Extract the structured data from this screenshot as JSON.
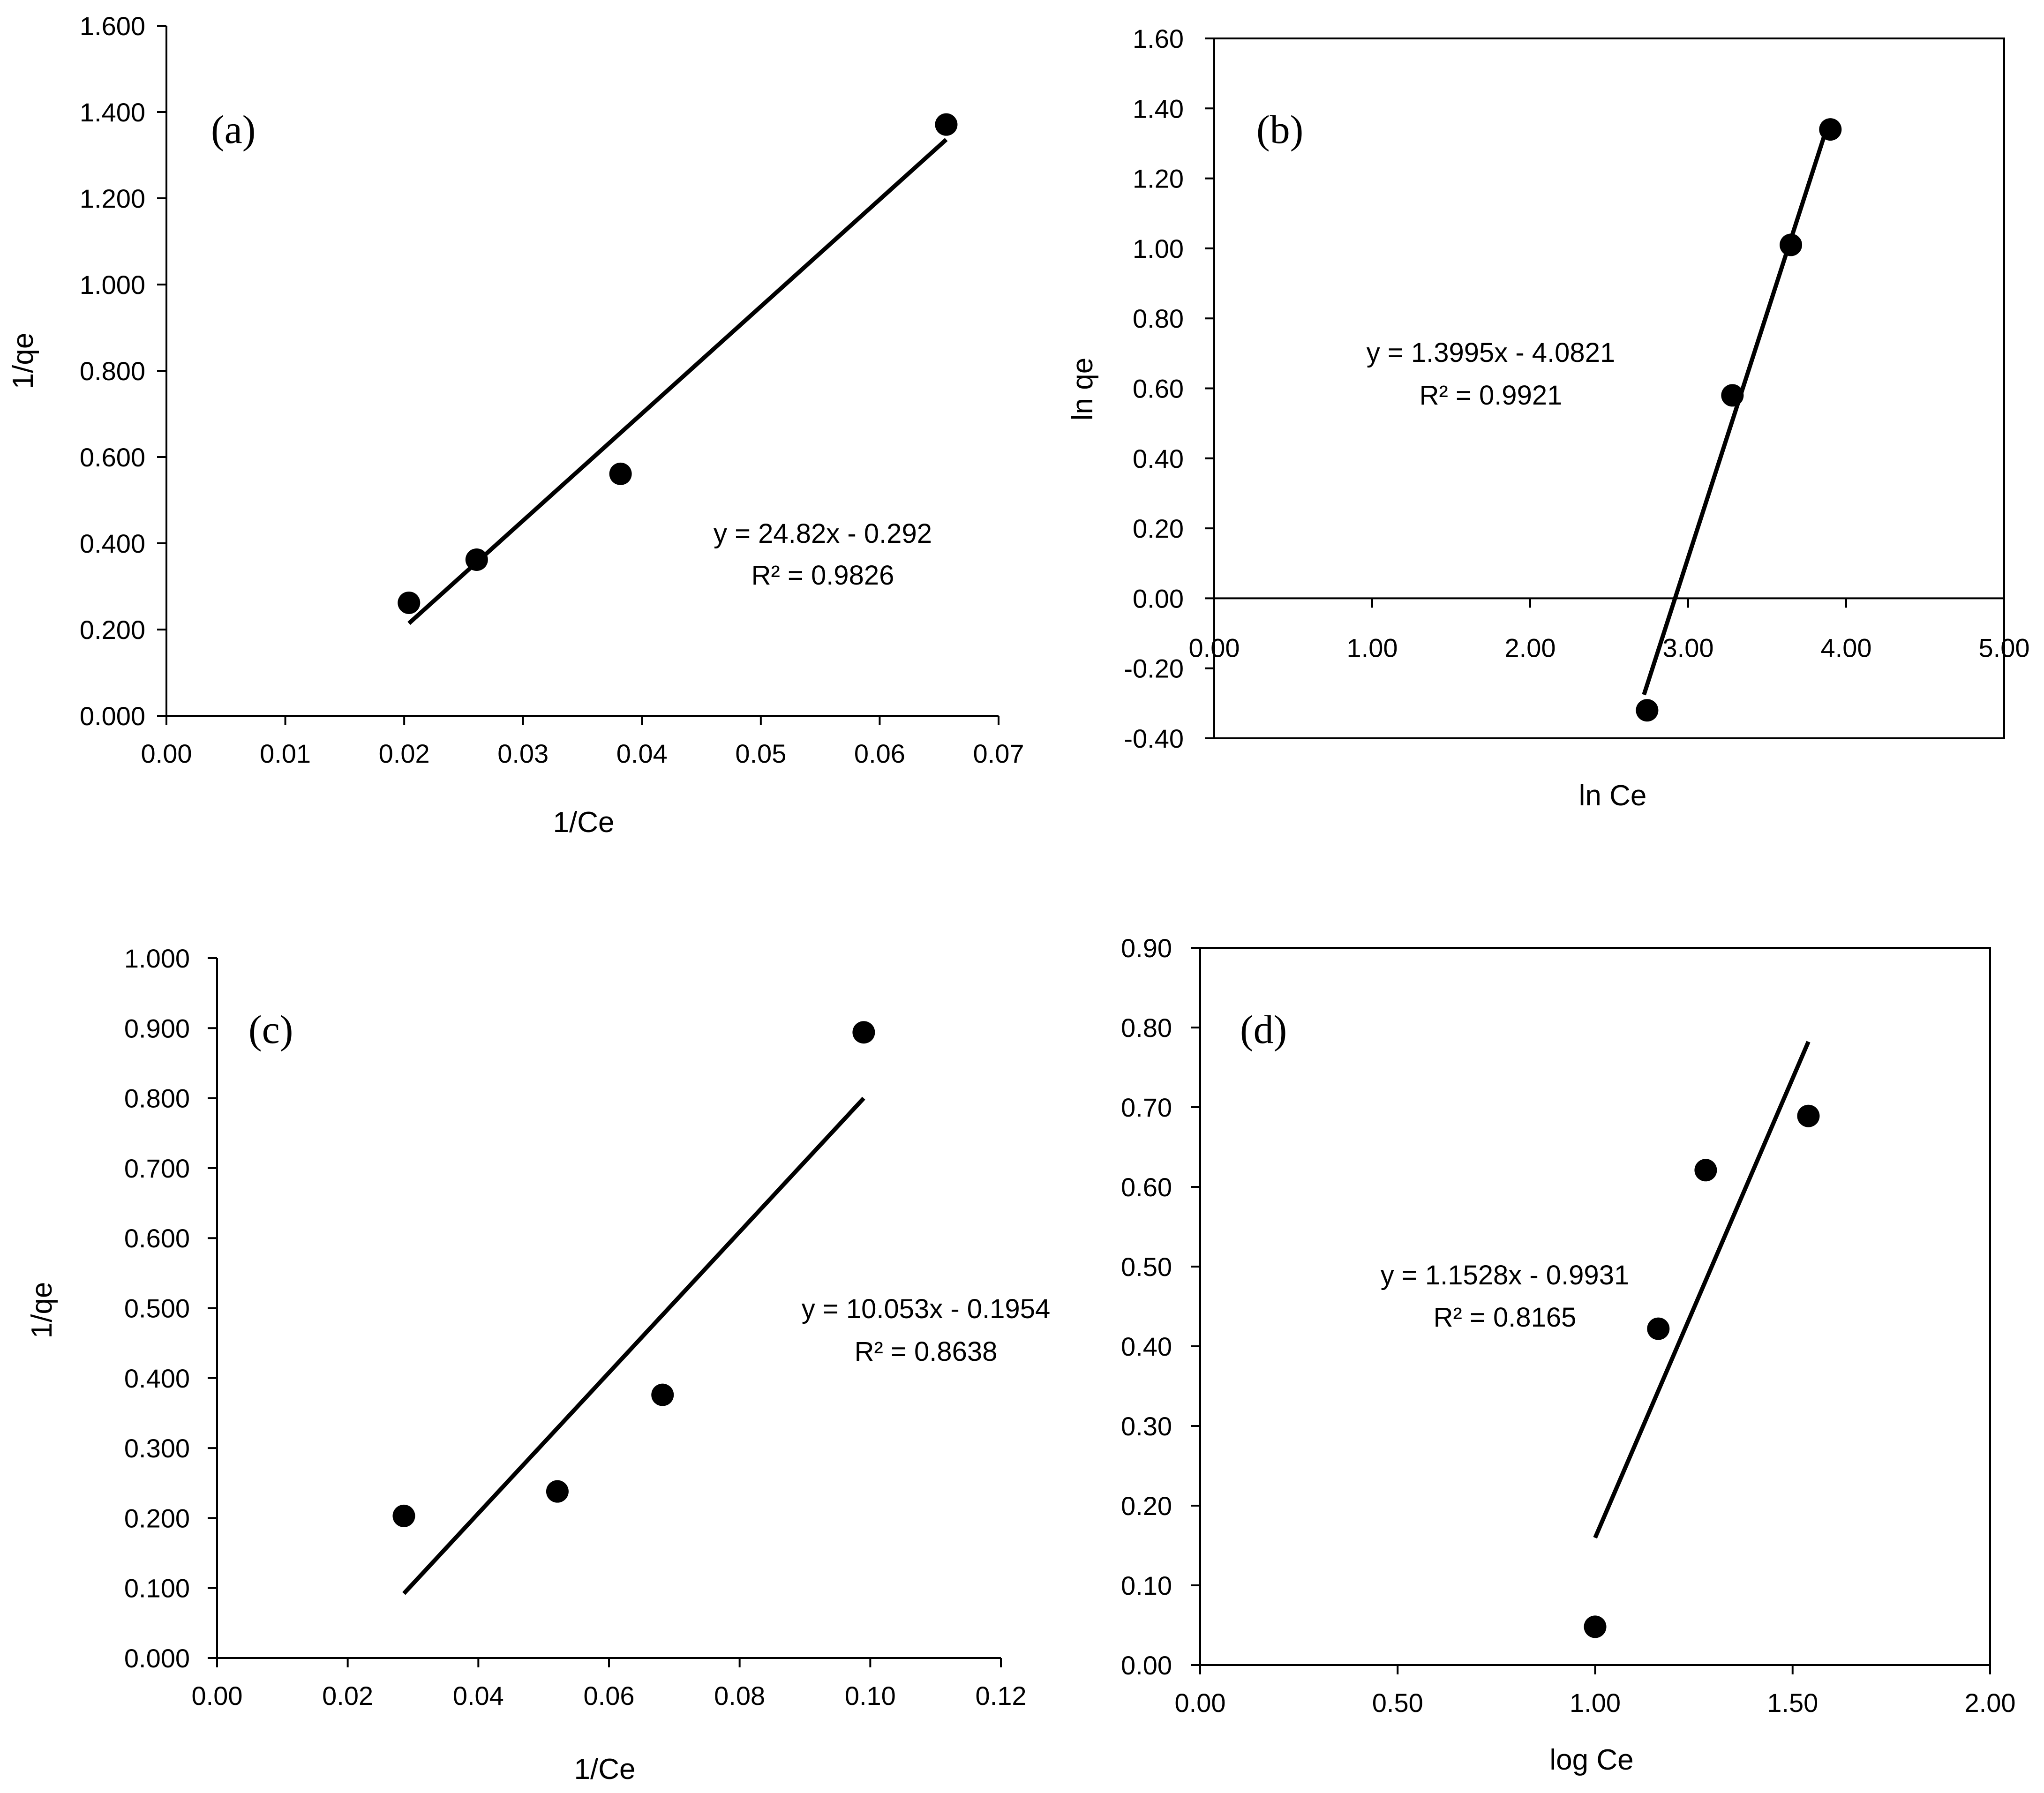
{
  "chart_data": [
    {
      "type": "scatter",
      "panel": "(a)",
      "xlabel": "1/Ce",
      "ylabel": "1/qe",
      "xlim": [
        0,
        0.07
      ],
      "ylim": [
        0,
        1.6
      ],
      "x_ticks": [
        "0.00",
        "0.01",
        "0.02",
        "0.03",
        "0.04",
        "0.05",
        "0.06",
        "0.07"
      ],
      "y_ticks": [
        "0.000",
        "0.200",
        "0.400",
        "0.600",
        "0.800",
        "1.000",
        "1.200",
        "1.400",
        "1.600"
      ],
      "points": [
        {
          "x": 0.0204,
          "y": 0.262
        },
        {
          "x": 0.0261,
          "y": 0.362
        },
        {
          "x": 0.0382,
          "y": 0.561
        },
        {
          "x": 0.0656,
          "y": 1.371
        }
      ],
      "trendline": {
        "slope": 24.82,
        "intercept": -0.292,
        "x_range": [
          0.0204,
          0.0656
        ]
      },
      "equation": "y = 24.82x - 0.292",
      "r_squared": "R² = 0.9826"
    },
    {
      "type": "scatter",
      "panel": "(b)",
      "xlabel": "ln Ce",
      "ylabel": "ln qe",
      "xlim": [
        0,
        5
      ],
      "ylim": [
        -0.4,
        1.6
      ],
      "x_ticks": [
        "0.00",
        "1.00",
        "2.00",
        "3.00",
        "4.00",
        "5.00"
      ],
      "y_ticks": [
        "-0.40",
        "-0.20",
        "0.00",
        "0.20",
        "0.40",
        "0.60",
        "0.80",
        "1.00",
        "1.20",
        "1.40",
        "1.60"
      ],
      "points": [
        {
          "x": 2.74,
          "y": -0.32
        },
        {
          "x": 3.28,
          "y": 0.58
        },
        {
          "x": 3.65,
          "y": 1.01
        },
        {
          "x": 3.9,
          "y": 1.34
        }
      ],
      "trendline": {
        "slope": 1.3995,
        "intercept": -4.0821,
        "x_range": [
          2.72,
          3.89
        ]
      },
      "equation": "y = 1.3995x - 4.0821",
      "r_squared": "R² = 0.9921"
    },
    {
      "type": "scatter",
      "panel": "(c)",
      "xlabel": "1/Ce",
      "ylabel": "1/qe",
      "xlim": [
        0,
        0.12
      ],
      "ylim": [
        0,
        1.0
      ],
      "x_ticks": [
        "0.00",
        "0.02",
        "0.04",
        "0.06",
        "0.08",
        "0.10",
        "0.12"
      ],
      "y_ticks": [
        "0.000",
        "0.100",
        "0.200",
        "0.300",
        "0.400",
        "0.500",
        "0.600",
        "0.700",
        "0.800",
        "0.900",
        "1.000"
      ],
      "points": [
        {
          "x": 0.0286,
          "y": 0.203
        },
        {
          "x": 0.0521,
          "y": 0.238
        },
        {
          "x": 0.0682,
          "y": 0.376
        },
        {
          "x": 0.099,
          "y": 0.894
        }
      ],
      "trendline": {
        "slope": 10.053,
        "intercept": -0.1954,
        "x_range": [
          0.0286,
          0.099
        ]
      },
      "equation": "y = 10.053x - 0.1954",
      "r_squared": "R² = 0.8638"
    },
    {
      "type": "scatter",
      "panel": "(d)",
      "xlabel": "log Ce",
      "ylabel": "",
      "xlim": [
        0,
        2
      ],
      "ylim": [
        0,
        0.9
      ],
      "x_ticks": [
        "0.00",
        "0.50",
        "1.00",
        "1.50",
        "2.00"
      ],
      "y_ticks": [
        "0.00",
        "0.10",
        "0.20",
        "0.30",
        "0.40",
        "0.50",
        "0.60",
        "0.70",
        "0.80",
        "0.90"
      ],
      "points": [
        {
          "x": 1.0,
          "y": 0.048
        },
        {
          "x": 1.16,
          "y": 0.422
        },
        {
          "x": 1.28,
          "y": 0.621
        },
        {
          "x": 1.54,
          "y": 0.689
        }
      ],
      "trendline": {
        "slope": 1.1528,
        "intercept": -0.9931,
        "x_range": [
          1.0,
          1.54
        ]
      },
      "equation": "y = 1.1528x - 0.9931",
      "r_squared": "R² = 0.8165"
    }
  ]
}
